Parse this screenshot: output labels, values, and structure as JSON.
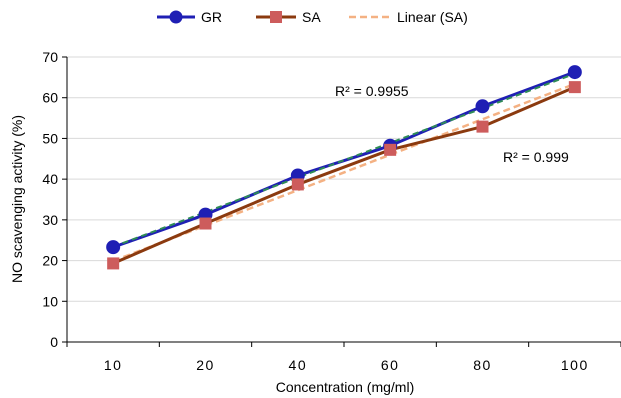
{
  "chart_data": {
    "type": "line",
    "categories": [
      "10",
      "20",
      "40",
      "60",
      "80",
      "100"
    ],
    "series": [
      {
        "name": "GR",
        "values": [
          23.3,
          31.3,
          40.9,
          48.2,
          57.9,
          66.3
        ],
        "color": "#1f1fb4",
        "marker": "circle"
      },
      {
        "name": "SA",
        "values": [
          19.3,
          29.1,
          38.7,
          47.2,
          52.9,
          62.6
        ],
        "color": "#8b3a0f",
        "marker": "square",
        "marker_color": "#cd5c5c"
      },
      {
        "name": "Linear (SA)",
        "values": [
          19.9,
          28.6,
          37.3,
          46.0,
          54.7,
          63.4
        ],
        "color": "#f4b183",
        "dashed": true
      }
    ],
    "trendline_gr": {
      "values": [
        23.4,
        31.9,
        40.4,
        48.9,
        57.4,
        65.9
      ],
      "color": "#2e8b57",
      "dashed": true
    },
    "annotations": [
      "R² = 0.9955",
      "R² = 0.999"
    ],
    "xlabel": "Concentration (mg/ml)",
    "ylabel": "NO scavenging activity (%)",
    "ylim": [
      0,
      70
    ],
    "yticks": [
      "0",
      "10",
      "20",
      "30",
      "40",
      "50",
      "60",
      "70"
    ],
    "legend_position": "top",
    "grid": true
  }
}
